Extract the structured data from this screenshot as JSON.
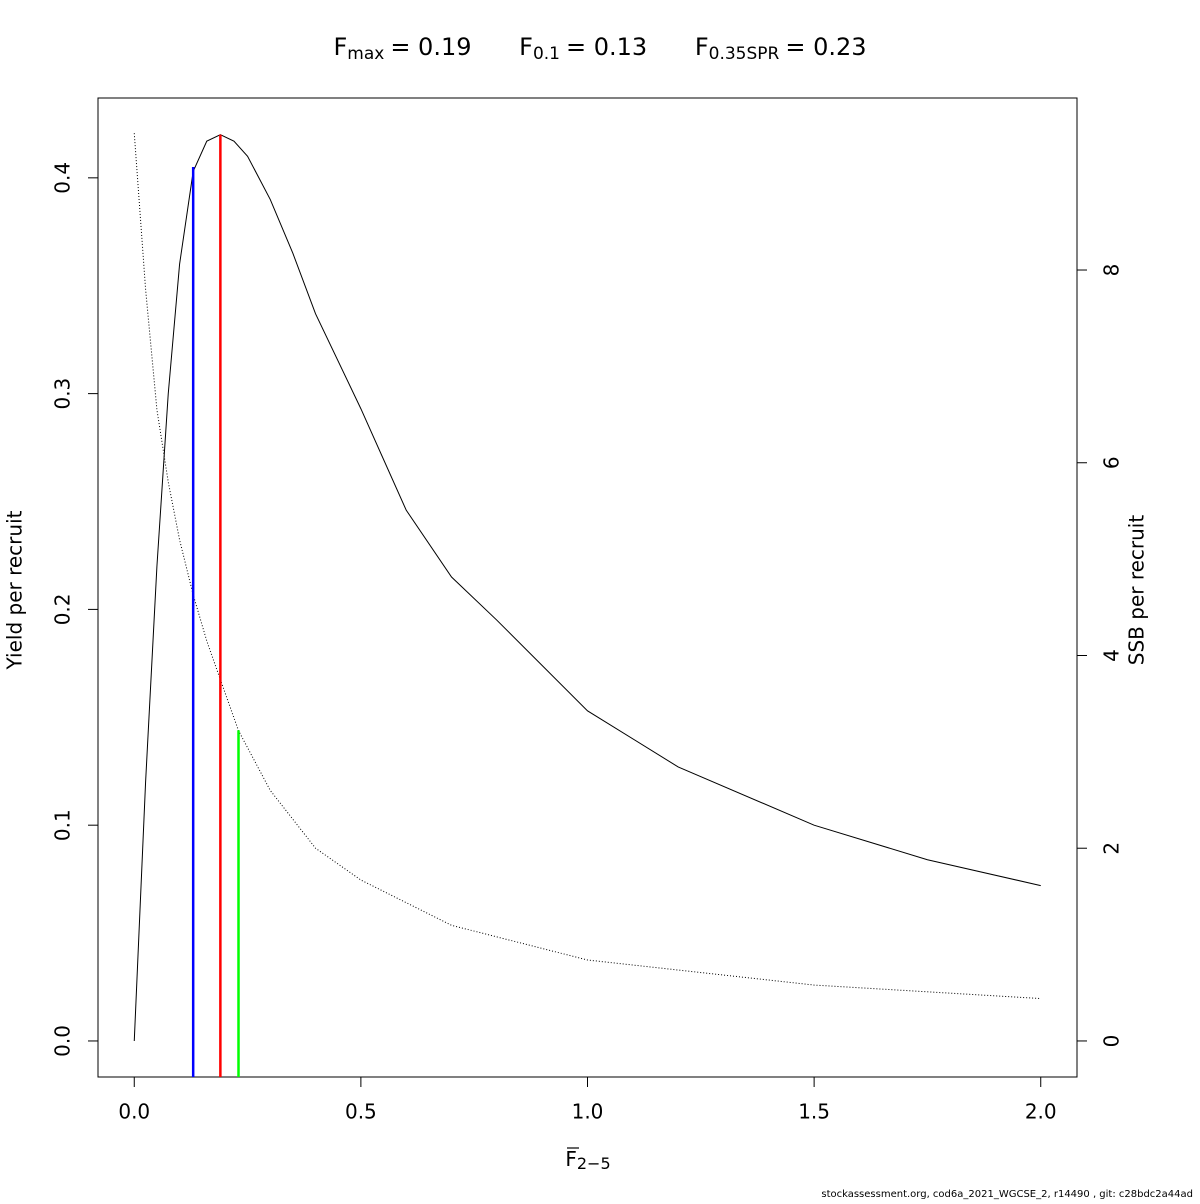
{
  "chart_data": {
    "type": "line",
    "title": [
      {
        "symbol": "F",
        "subscript": "max",
        "text": "= 0.19"
      },
      {
        "symbol": "F",
        "subscript": "0.1",
        "text": "= 0.13"
      },
      {
        "symbol": "F",
        "subscript": "0.35SPR",
        "text": "= 0.23"
      }
    ],
    "xlabel": {
      "symbol": "F",
      "subscript": "2−5"
    },
    "ylabel": "Yield per recruit",
    "y2label": "SSB per recruit",
    "footer": "stockassessment.org, cod6a_2021_WGCSE_2, r14490 , git: c28bdc2a44ad",
    "xlim": [
      -0.08,
      2.08
    ],
    "ylim": [
      -0.0167,
      0.437
    ],
    "y2lim": [
      -0.374,
      9.785
    ],
    "xticks": [
      {
        "value": 0,
        "label": "0.0"
      },
      0.5,
      {
        "value": 1,
        "label": "1.0"
      },
      1.5,
      {
        "value": 2,
        "label": "2.0"
      }
    ],
    "yticks": [
      {
        "value": 0,
        "label": "0.0"
      },
      0.1,
      0.2,
      0.3,
      0.4
    ],
    "y2ticks": [
      0,
      2,
      4,
      6,
      8
    ],
    "series": [
      {
        "name": "Yield per recruit",
        "color": "#000000",
        "style": "solid",
        "x": [
          0,
          0.025,
          0.05,
          0.075,
          0.1,
          0.13,
          0.16,
          0.19,
          0.22,
          0.25,
          0.3,
          0.35,
          0.4,
          0.5,
          0.6,
          0.7,
          0.8,
          1.0,
          1.2,
          1.5,
          1.75,
          2.0
        ],
        "values": [
          0,
          0.12,
          0.22,
          0.3,
          0.36,
          0.403,
          0.417,
          0.42,
          0.417,
          0.41,
          0.39,
          0.365,
          0.337,
          0.293,
          0.246,
          0.215,
          0.195,
          0.153,
          0.127,
          0.1,
          0.084,
          0.072
        ]
      },
      {
        "name": "SSB per recruit",
        "color": "#000000",
        "style": "dotted",
        "axis": "y2",
        "x": [
          0,
          0.025,
          0.05,
          0.075,
          0.1,
          0.13,
          0.16,
          0.19,
          0.23,
          0.3,
          0.4,
          0.5,
          0.7,
          1.0,
          1.5,
          2.0
        ],
        "values": [
          9.42,
          7.8,
          6.55,
          5.8,
          5.2,
          4.63,
          4.15,
          3.75,
          3.22,
          2.6,
          2.0,
          1.67,
          1.2,
          0.84,
          0.58,
          0.44
        ]
      }
    ],
    "reference_lines": [
      {
        "x": 0.13,
        "y": 0.405,
        "color": "#0000ff"
      },
      {
        "x": 0.19,
        "y": 0.42,
        "color": "#ff0000"
      },
      {
        "x": 0.23,
        "y": 0.144,
        "color": "#00ff00"
      }
    ]
  }
}
